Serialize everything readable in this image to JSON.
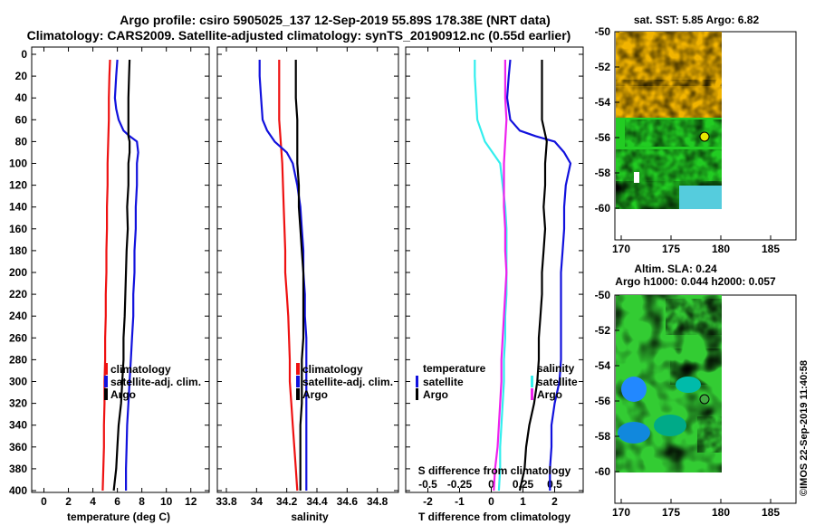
{
  "title": {
    "line1": "Argo profile: csiro 5905025_137 12-Sep-2019 55.89S 178.38E (NRT data)",
    "line2": "Climatology: CARS2009. Satellite-adjusted climatology: synTS_20190912.nc (0.55d earlier)"
  },
  "colors": {
    "climatology": "#ee1111",
    "satellite": "#1111dd",
    "argo": "#000000",
    "temp_diff": "#33eeee",
    "sal_diff": "#ee22ee",
    "marker": "#e8e800",
    "marker_bottom": "#44aa44"
  },
  "depth_ticks": [
    0,
    20,
    40,
    60,
    80,
    100,
    120,
    140,
    160,
    180,
    200,
    220,
    240,
    260,
    280,
    300,
    320,
    340,
    360,
    380,
    400
  ],
  "chart_data": [
    {
      "type": "line",
      "id": "temperature",
      "xlabel": "temperature (deg C)",
      "xlim": [
        -1,
        13.5
      ],
      "ylim": [
        0,
        400
      ],
      "x_ticks": [
        0,
        2,
        4,
        6,
        8,
        10,
        12
      ],
      "legend": [
        "climatology",
        "satellite-adj. clim.",
        "Argo"
      ],
      "series": [
        {
          "name": "climatology",
          "depth": [
            5,
            20,
            40,
            60,
            80,
            100,
            120,
            140,
            160,
            180,
            200,
            220,
            240,
            260,
            280,
            300,
            320,
            340,
            360,
            380,
            400
          ],
          "values": [
            5.4,
            5.35,
            5.3,
            5.3,
            5.25,
            5.2,
            5.2,
            5.15,
            5.15,
            5.1,
            5.1,
            5.05,
            5.05,
            5.0,
            5.0,
            4.95,
            4.95,
            4.9,
            4.9,
            4.85,
            4.8
          ]
        },
        {
          "name": "satellite-adj. clim.",
          "depth": [
            5,
            20,
            40,
            50,
            60,
            70,
            75,
            80,
            90,
            100,
            120,
            140,
            160,
            180,
            200,
            220,
            240,
            260,
            280,
            300,
            320,
            340,
            360,
            380,
            400
          ],
          "values": [
            6.0,
            5.9,
            5.8,
            5.9,
            6.1,
            6.5,
            7.0,
            7.6,
            7.7,
            7.6,
            7.6,
            7.5,
            7.5,
            7.4,
            7.4,
            7.3,
            7.3,
            7.2,
            7.1,
            7.0,
            6.9,
            6.8,
            6.75,
            6.7,
            6.7
          ]
        },
        {
          "name": "Argo",
          "depth": [
            5,
            20,
            40,
            60,
            75,
            80,
            90,
            100,
            120,
            140,
            160,
            180,
            200,
            220,
            240,
            260,
            280,
            300,
            320,
            340,
            360,
            380,
            400
          ],
          "values": [
            7.0,
            6.95,
            6.9,
            6.9,
            6.9,
            7.0,
            7.0,
            6.9,
            6.9,
            6.8,
            6.85,
            6.75,
            6.7,
            6.65,
            6.6,
            6.5,
            6.5,
            6.4,
            6.3,
            6.1,
            6.0,
            5.9,
            5.7
          ]
        }
      ]
    },
    {
      "type": "line",
      "id": "salinity",
      "xlabel": "salinity",
      "xlim": [
        33.74,
        34.94
      ],
      "ylim": [
        0,
        400
      ],
      "x_ticks": [
        "33.8",
        "34",
        "34.2",
        "34.4",
        "34.6",
        "34.8"
      ],
      "legend": [
        "climatology",
        "satellite-adj. clim.",
        "Argo"
      ],
      "series": [
        {
          "name": "climatology",
          "depth": [
            5,
            20,
            40,
            60,
            80,
            100,
            140,
            180,
            200,
            220,
            240,
            280,
            300,
            320,
            340,
            360,
            380,
            400
          ],
          "values": [
            34.15,
            34.15,
            34.15,
            34.15,
            34.16,
            34.17,
            34.18,
            34.19,
            34.19,
            34.2,
            34.21,
            34.22,
            34.22,
            34.23,
            34.24,
            34.25,
            34.26,
            34.27
          ]
        },
        {
          "name": "satellite-adj. clim.",
          "depth": [
            5,
            20,
            40,
            60,
            70,
            80,
            90,
            100,
            120,
            140,
            160,
            180,
            200,
            220,
            240,
            260,
            280,
            300,
            320,
            340,
            360,
            380,
            400
          ],
          "values": [
            34.02,
            34.02,
            34.03,
            34.04,
            34.07,
            34.12,
            34.2,
            34.24,
            34.27,
            34.29,
            34.3,
            34.31,
            34.31,
            34.32,
            34.32,
            34.33,
            34.33,
            34.33,
            34.33,
            34.33,
            34.33,
            34.33,
            34.33
          ]
        },
        {
          "name": "Argo",
          "depth": [
            5,
            20,
            40,
            60,
            80,
            100,
            120,
            140,
            160,
            180,
            200,
            220,
            240,
            260,
            280,
            300,
            320,
            340,
            360,
            380,
            400
          ],
          "values": [
            34.26,
            34.26,
            34.26,
            34.27,
            34.27,
            34.27,
            34.28,
            34.28,
            34.29,
            34.3,
            34.31,
            34.31,
            34.31,
            34.31,
            34.3,
            34.3,
            34.3,
            34.29,
            34.29,
            34.29,
            34.29
          ]
        }
      ]
    },
    {
      "type": "line",
      "id": "difference",
      "xlabel": "T difference from climatology",
      "xlabel_top": "S difference from climatology",
      "xlim": [
        -2.7,
        2.9
      ],
      "ylim": [
        0,
        400
      ],
      "x_ticks": [
        "-2",
        "-1",
        "0",
        "1",
        "2"
      ],
      "x_ticks_top": [
        "-0.5",
        "-0.25",
        "0",
        "0.25",
        "0.5"
      ],
      "legend_left": {
        "title": "temperature",
        "items": [
          "satellite",
          "Argo"
        ]
      },
      "legend_right": {
        "title": "salinity",
        "items": [
          "satellite",
          "Argo"
        ]
      },
      "series": [
        {
          "name": "temperature satellite",
          "depth": [
            5,
            20,
            40,
            60,
            70,
            75,
            80,
            90,
            100,
            120,
            140,
            160,
            180,
            200,
            220,
            240,
            260,
            280,
            300,
            320,
            340,
            360,
            380,
            400
          ],
          "values": [
            0.6,
            0.55,
            0.5,
            0.6,
            0.9,
            1.4,
            2.0,
            2.3,
            2.5,
            2.35,
            2.3,
            2.3,
            2.25,
            2.2,
            2.2,
            2.2,
            2.2,
            2.2,
            2.15,
            2.0,
            1.9,
            1.9,
            1.85,
            1.85
          ]
        },
        {
          "name": "temperature Argo",
          "depth": [
            5,
            20,
            40,
            60,
            80,
            100,
            120,
            140,
            160,
            180,
            200,
            220,
            240,
            260,
            280,
            300,
            320,
            340,
            360,
            380,
            400
          ],
          "values": [
            1.6,
            1.6,
            1.6,
            1.6,
            1.75,
            1.7,
            1.7,
            1.65,
            1.7,
            1.65,
            1.6,
            1.6,
            1.55,
            1.5,
            1.5,
            1.45,
            1.35,
            1.2,
            1.1,
            1.05,
            0.9
          ]
        },
        {
          "name": "salinity satellite",
          "depth": [
            5,
            20,
            40,
            60,
            80,
            100,
            120,
            140,
            160,
            180,
            200,
            220,
            240,
            260,
            280,
            300,
            320,
            340,
            360,
            380,
            400
          ],
          "values": [
            -0.13,
            -0.13,
            -0.12,
            -0.11,
            -0.05,
            0.07,
            0.09,
            0.11,
            0.12,
            0.12,
            0.12,
            0.12,
            0.11,
            0.11,
            0.1,
            0.1,
            0.09,
            0.08,
            0.07,
            0.07,
            0.06
          ]
        },
        {
          "name": "salinity Argo",
          "depth": [
            5,
            20,
            40,
            60,
            80,
            100,
            120,
            140,
            160,
            180,
            200,
            220,
            240,
            260,
            280,
            300,
            320,
            340,
            360,
            380,
            400
          ],
          "values": [
            0.11,
            0.11,
            0.11,
            0.12,
            0.11,
            0.1,
            0.1,
            0.1,
            0.11,
            0.11,
            0.12,
            0.11,
            0.1,
            0.09,
            0.08,
            0.08,
            0.07,
            0.06,
            0.05,
            0.03,
            0.02
          ]
        }
      ]
    },
    {
      "type": "heatmap",
      "id": "sst-map",
      "title": "sat. SST: 5.85 Argo: 6.82",
      "x_ticks": [
        "170",
        "175",
        "180",
        "185"
      ],
      "y_ticks": [
        "-50",
        "-52",
        "-54",
        "-56",
        "-58",
        "-60"
      ],
      "argo_position": {
        "lon": 178.38,
        "lat": -55.89
      }
    },
    {
      "type": "heatmap",
      "id": "sla-map",
      "title": "Altim. SLA: 0.24",
      "subtitle": "Argo h1000: 0.044 h2000: 0.057",
      "x_ticks": [
        "170",
        "175",
        "180",
        "185"
      ],
      "y_ticks": [
        "-50",
        "-52",
        "-54",
        "-56",
        "-58",
        "-60"
      ],
      "argo_position": {
        "lon": 178.38,
        "lat": -55.89
      }
    }
  ],
  "credit": "©IMOS 22-Sep-2019 11:40:58"
}
